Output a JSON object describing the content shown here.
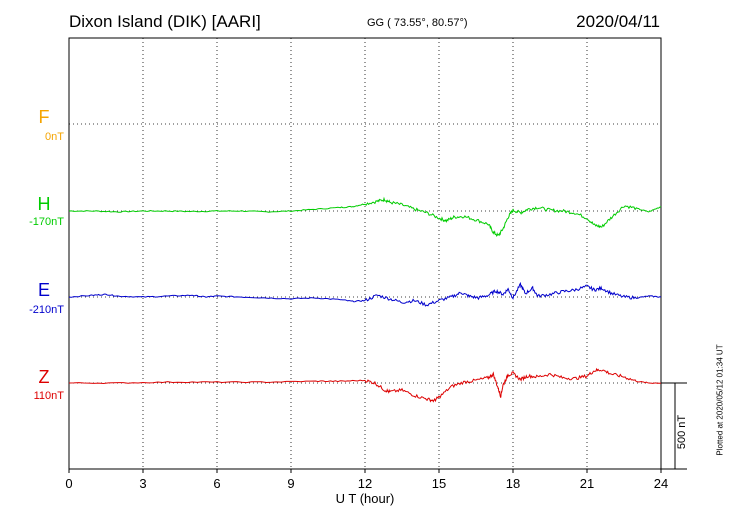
{
  "header": {
    "station": "Dixon Island (DIK)  [AARI]",
    "coords": "GG ( 73.55°,  80.57°)",
    "date": "2020/04/11"
  },
  "components": [
    {
      "name": "F",
      "baseline": "0nT",
      "color": "#f5a400"
    },
    {
      "name": "H",
      "baseline": "-170nT",
      "color": "#00cc00"
    },
    {
      "name": "E",
      "baseline": "-210nT",
      "color": "#0000cc"
    },
    {
      "name": "Z",
      "baseline": "110nT",
      "color": "#dd0000"
    }
  ],
  "scale_label": "500 nT",
  "plotted": "Plotted at 2020/05/12 01:34 UT",
  "chart_data": {
    "type": "line",
    "xlabel": "U T (hour)",
    "xlim": [
      0,
      24
    ],
    "xticks": [
      0,
      3,
      6,
      9,
      12,
      15,
      18,
      21,
      24
    ],
    "y_units": "nT",
    "series": [
      {
        "name": "H",
        "color": "#00cc00",
        "x": [
          0,
          1,
          2,
          3,
          4,
          5,
          6,
          7,
          8,
          9,
          10,
          11,
          11.5,
          12,
          12.5,
          12.8,
          13,
          13.5,
          14,
          14.5,
          15,
          15.3,
          15.6,
          16,
          16.5,
          17,
          17.2,
          17.4,
          17.6,
          17.8,
          18,
          18.3,
          18.6,
          19,
          19.5,
          20,
          20.5,
          21,
          21.3,
          21.6,
          22,
          22.5,
          23,
          23.5,
          24
        ],
        "y": [
          0,
          0,
          -5,
          0,
          0,
          -3,
          0,
          0,
          -5,
          0,
          10,
          20,
          25,
          40,
          55,
          65,
          50,
          35,
          10,
          -10,
          -40,
          -55,
          -35,
          -30,
          -50,
          -75,
          -120,
          -140,
          -100,
          -35,
          5,
          -10,
          10,
          20,
          5,
          0,
          -10,
          -40,
          -80,
          -90,
          -35,
          30,
          15,
          -5,
          25
        ]
      },
      {
        "name": "E",
        "color": "#0000cc",
        "x": [
          0,
          1,
          1.5,
          2,
          3,
          4,
          5,
          5.5,
          6,
          7,
          8,
          9,
          10,
          11,
          11.5,
          12,
          12.5,
          13,
          13.5,
          14,
          14.5,
          15,
          15.5,
          15.9,
          16.2,
          16.6,
          17,
          17.3,
          17.6,
          17.8,
          18,
          18.3,
          18.5,
          18.8,
          19,
          19.5,
          20,
          20.5,
          21,
          21.3,
          21.6,
          22,
          22.5,
          23,
          23.5,
          24
        ],
        "y": [
          0,
          10,
          15,
          5,
          0,
          5,
          10,
          0,
          5,
          0,
          -5,
          -10,
          -5,
          -15,
          -25,
          -20,
          10,
          -10,
          -30,
          -20,
          -45,
          -20,
          0,
          25,
          5,
          -5,
          10,
          35,
          15,
          45,
          -5,
          70,
          20,
          50,
          5,
          15,
          30,
          40,
          60,
          40,
          50,
          20,
          0,
          -5,
          5,
          0
        ]
      },
      {
        "name": "Z",
        "color": "#dd0000",
        "x": [
          0,
          2,
          4,
          6,
          8,
          10,
          11,
          12,
          12.4,
          12.8,
          13,
          13.5,
          14,
          14.5,
          14.8,
          15,
          15.5,
          16,
          16.5,
          17,
          17.2,
          17.4,
          17.5,
          17.6,
          17.8,
          18,
          18.3,
          18.6,
          19,
          19.5,
          20,
          20.5,
          21,
          21.3,
          21.6,
          22,
          22.5,
          23,
          23.5,
          24
        ],
        "y": [
          0,
          0,
          5,
          5,
          5,
          10,
          10,
          15,
          0,
          -40,
          -50,
          -40,
          -70,
          -90,
          -100,
          -80,
          -20,
          5,
          15,
          30,
          50,
          -30,
          -75,
          -10,
          45,
          55,
          20,
          40,
          35,
          50,
          30,
          25,
          40,
          70,
          75,
          50,
          35,
          10,
          0,
          0
        ]
      }
    ]
  }
}
